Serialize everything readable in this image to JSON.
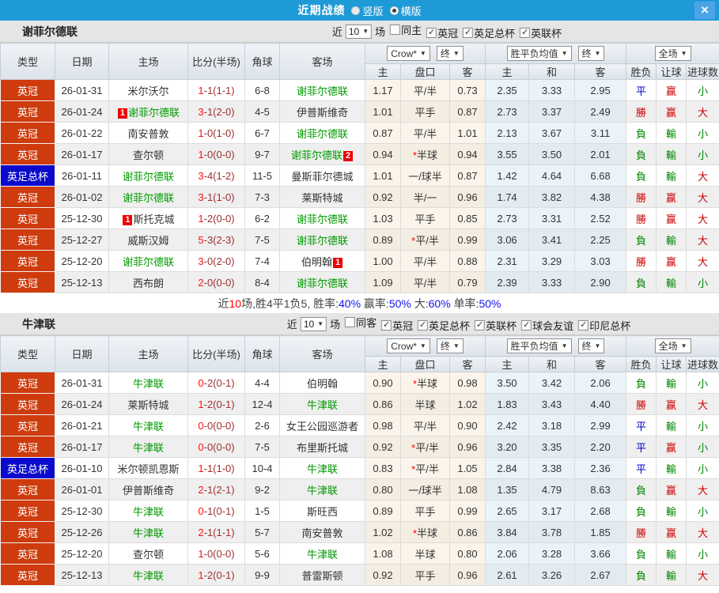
{
  "titlebar": {
    "title": "近期战绩",
    "radio_vertical": "竖版",
    "radio_horizontal": "横版",
    "close_glyph": "×"
  },
  "columns": {
    "type": "类型",
    "date": "日期",
    "home": "主场",
    "score": "比分(半场)",
    "corner": "角球",
    "away": "客场",
    "crow_dropdown": "Crow*",
    "final_dropdown": "终",
    "mean_dropdown": "胜平负均值",
    "final_dropdown2": "终",
    "full_dropdown": "全场",
    "sub_home": "主",
    "sub_pan": "盘口",
    "sub_away": "客",
    "sub_mhome": "主",
    "sub_draw": "和",
    "sub_maway": "客",
    "sub_result": "胜负",
    "sub_handicap": "让球",
    "sub_goals": "进球数"
  },
  "sections": [
    {
      "team": "谢菲尔德联",
      "filter": {
        "prefix": "近",
        "count": "10",
        "suffix": "场",
        "checkboxes": [
          {
            "label": "同主",
            "checked": false
          },
          {
            "label": "英冠",
            "checked": true
          },
          {
            "label": "英足总杯",
            "checked": true
          },
          {
            "label": "英联杯",
            "checked": true
          }
        ]
      },
      "rows": [
        {
          "type": "英冠",
          "type_cls": "league",
          "date": "26-01-31",
          "home": "米尔沃尔",
          "home_green": false,
          "home_badge": "",
          "score": "1-1(1-1)",
          "corner": "6-8",
          "away": "谢菲尔德联",
          "away_green": true,
          "away_badge": "",
          "o1": "1.17",
          "pan": "平/半",
          "o2": "0.73",
          "m1": "2.35",
          "m2": "3.33",
          "m3": "2.95",
          "res": {
            "t": "平",
            "c": "b"
          },
          "rq": {
            "t": "赢",
            "c": "r"
          },
          "gl": {
            "t": "小",
            "c": "g"
          }
        },
        {
          "type": "英冠",
          "type_cls": "league",
          "date": "26-01-24",
          "home": "谢菲尔德联",
          "home_green": true,
          "home_badge": "1",
          "score": "3-1(2-0)",
          "corner": "4-5",
          "away": "伊普斯维奇",
          "away_green": false,
          "away_badge": "",
          "o1": "1.01",
          "pan": "平手",
          "o2": "0.87",
          "m1": "2.73",
          "m2": "3.37",
          "m3": "2.49",
          "res": {
            "t": "勝",
            "c": "r"
          },
          "rq": {
            "t": "赢",
            "c": "r"
          },
          "gl": {
            "t": "大",
            "c": "r"
          }
        },
        {
          "type": "英冠",
          "type_cls": "league",
          "date": "26-01-22",
          "home": "南安普敦",
          "home_green": false,
          "home_badge": "",
          "score": "1-0(1-0)",
          "corner": "6-7",
          "away": "谢菲尔德联",
          "away_green": true,
          "away_badge": "",
          "o1": "0.87",
          "pan": "平/半",
          "o2": "1.01",
          "m1": "2.13",
          "m2": "3.67",
          "m3": "3.11",
          "res": {
            "t": "負",
            "c": "g"
          },
          "rq": {
            "t": "輸",
            "c": "g"
          },
          "gl": {
            "t": "小",
            "c": "g"
          }
        },
        {
          "type": "英冠",
          "type_cls": "league",
          "date": "26-01-17",
          "home": "查尔顿",
          "home_green": false,
          "home_badge": "",
          "score": "1-0(0-0)",
          "corner": "9-7",
          "away": "谢菲尔德联",
          "away_green": true,
          "away_badge": "2",
          "o1": "0.94",
          "pan": "*半球",
          "o2": "0.94",
          "m1": "3.55",
          "m2": "3.50",
          "m3": "2.01",
          "res": {
            "t": "負",
            "c": "g"
          },
          "rq": {
            "t": "輸",
            "c": "g"
          },
          "gl": {
            "t": "小",
            "c": "g"
          }
        },
        {
          "type": "英足总杯",
          "type_cls": "cup",
          "date": "26-01-11",
          "home": "谢菲尔德联",
          "home_green": true,
          "home_badge": "",
          "score": "3-4(1-2)",
          "corner": "11-5",
          "away": "曼斯菲尔德城",
          "away_green": false,
          "away_badge": "",
          "o1": "1.01",
          "pan": "一/球半",
          "o2": "0.87",
          "m1": "1.42",
          "m2": "4.64",
          "m3": "6.68",
          "res": {
            "t": "負",
            "c": "g"
          },
          "rq": {
            "t": "輸",
            "c": "g"
          },
          "gl": {
            "t": "大",
            "c": "r"
          }
        },
        {
          "type": "英冠",
          "type_cls": "league",
          "date": "26-01-02",
          "home": "谢菲尔德联",
          "home_green": true,
          "home_badge": "",
          "score": "3-1(1-0)",
          "corner": "7-3",
          "away": "莱斯特城",
          "away_green": false,
          "away_badge": "",
          "o1": "0.92",
          "pan": "半/一",
          "o2": "0.96",
          "m1": "1.74",
          "m2": "3.82",
          "m3": "4.38",
          "res": {
            "t": "勝",
            "c": "r"
          },
          "rq": {
            "t": "赢",
            "c": "r"
          },
          "gl": {
            "t": "大",
            "c": "r"
          }
        },
        {
          "type": "英冠",
          "type_cls": "league",
          "date": "25-12-30",
          "home": "斯托克城",
          "home_green": false,
          "home_badge": "1",
          "score": "1-2(0-0)",
          "corner": "6-2",
          "away": "谢菲尔德联",
          "away_green": true,
          "away_badge": "",
          "o1": "1.03",
          "pan": "平手",
          "o2": "0.85",
          "m1": "2.73",
          "m2": "3.31",
          "m3": "2.52",
          "res": {
            "t": "勝",
            "c": "r"
          },
          "rq": {
            "t": "赢",
            "c": "r"
          },
          "gl": {
            "t": "大",
            "c": "r"
          }
        },
        {
          "type": "英冠",
          "type_cls": "league",
          "date": "25-12-27",
          "home": "威斯汉姆",
          "home_green": false,
          "home_badge": "",
          "score": "5-3(2-3)",
          "corner": "7-5",
          "away": "谢菲尔德联",
          "away_green": true,
          "away_badge": "",
          "o1": "0.89",
          "pan": "*平/半",
          "o2": "0.99",
          "m1": "3.06",
          "m2": "3.41",
          "m3": "2.25",
          "res": {
            "t": "負",
            "c": "g"
          },
          "rq": {
            "t": "輸",
            "c": "g"
          },
          "gl": {
            "t": "大",
            "c": "r"
          }
        },
        {
          "type": "英冠",
          "type_cls": "league",
          "date": "25-12-20",
          "home": "谢菲尔德联",
          "home_green": true,
          "home_badge": "",
          "score": "3-0(2-0)",
          "corner": "7-4",
          "away": "伯明翰",
          "away_green": false,
          "away_badge": "1",
          "o1": "1.00",
          "pan": "平/半",
          "o2": "0.88",
          "m1": "2.31",
          "m2": "3.29",
          "m3": "3.03",
          "res": {
            "t": "勝",
            "c": "r"
          },
          "rq": {
            "t": "赢",
            "c": "r"
          },
          "gl": {
            "t": "大",
            "c": "r"
          }
        },
        {
          "type": "英冠",
          "type_cls": "league",
          "date": "25-12-13",
          "home": "西布朗",
          "home_green": false,
          "home_badge": "",
          "score": "2-0(0-0)",
          "corner": "8-4",
          "away": "谢菲尔德联",
          "away_green": true,
          "away_badge": "",
          "o1": "1.09",
          "pan": "平/半",
          "o2": "0.79",
          "m1": "2.39",
          "m2": "3.33",
          "m3": "2.90",
          "res": {
            "t": "負",
            "c": "g"
          },
          "rq": {
            "t": "輸",
            "c": "g"
          },
          "gl": {
            "t": "小",
            "c": "g"
          }
        }
      ],
      "summary": [
        {
          "t": "近",
          "c": "d"
        },
        {
          "t": "10",
          "c": "r"
        },
        {
          "t": "场,胜4平1负5, 胜率:",
          "c": "d"
        },
        {
          "t": "40%",
          "c": "b"
        },
        {
          "t": " 赢率:",
          "c": "d"
        },
        {
          "t": "50%",
          "c": "b"
        },
        {
          "t": " 大:",
          "c": "d"
        },
        {
          "t": "60%",
          "c": "b"
        },
        {
          "t": " 单率:",
          "c": "d"
        },
        {
          "t": "50%",
          "c": "b"
        }
      ]
    },
    {
      "team": "牛津联",
      "filter": {
        "prefix": "近",
        "count": "10",
        "suffix": "场",
        "checkboxes": [
          {
            "label": "同客",
            "checked": false
          },
          {
            "label": "英冠",
            "checked": true
          },
          {
            "label": "英足总杯",
            "checked": true
          },
          {
            "label": "英联杯",
            "checked": true
          },
          {
            "label": "球会友谊",
            "checked": true
          },
          {
            "label": "印尼总杯",
            "checked": true
          }
        ]
      },
      "rows": [
        {
          "type": "英冠",
          "type_cls": "league",
          "date": "26-01-31",
          "home": "牛津联",
          "home_green": true,
          "home_badge": "",
          "score": "0-2(0-1)",
          "corner": "4-4",
          "away": "伯明翰",
          "away_green": false,
          "away_badge": "",
          "o1": "0.90",
          "pan": "*半球",
          "o2": "0.98",
          "m1": "3.50",
          "m2": "3.42",
          "m3": "2.06",
          "res": {
            "t": "負",
            "c": "g"
          },
          "rq": {
            "t": "輸",
            "c": "g"
          },
          "gl": {
            "t": "小",
            "c": "g"
          }
        },
        {
          "type": "英冠",
          "type_cls": "league",
          "date": "26-01-24",
          "home": "莱斯特城",
          "home_green": false,
          "home_badge": "",
          "score": "1-2(0-1)",
          "corner": "12-4",
          "away": "牛津联",
          "away_green": true,
          "away_badge": "",
          "o1": "0.86",
          "pan": "半球",
          "o2": "1.02",
          "m1": "1.83",
          "m2": "3.43",
          "m3": "4.40",
          "res": {
            "t": "勝",
            "c": "r"
          },
          "rq": {
            "t": "赢",
            "c": "r"
          },
          "gl": {
            "t": "大",
            "c": "r"
          }
        },
        {
          "type": "英冠",
          "type_cls": "league",
          "date": "26-01-21",
          "home": "牛津联",
          "home_green": true,
          "home_badge": "",
          "score": "0-0(0-0)",
          "corner": "2-6",
          "away": "女王公园巡游者",
          "away_green": false,
          "away_badge": "",
          "o1": "0.98",
          "pan": "平/半",
          "o2": "0.90",
          "m1": "2.42",
          "m2": "3.18",
          "m3": "2.99",
          "res": {
            "t": "平",
            "c": "b"
          },
          "rq": {
            "t": "輸",
            "c": "g"
          },
          "gl": {
            "t": "小",
            "c": "g"
          }
        },
        {
          "type": "英冠",
          "type_cls": "league",
          "date": "26-01-17",
          "home": "牛津联",
          "home_green": true,
          "home_badge": "",
          "score": "0-0(0-0)",
          "corner": "7-5",
          "away": "布里斯托城",
          "away_green": false,
          "away_badge": "",
          "o1": "0.92",
          "pan": "*平/半",
          "o2": "0.96",
          "m1": "3.20",
          "m2": "3.35",
          "m3": "2.20",
          "res": {
            "t": "平",
            "c": "b"
          },
          "rq": {
            "t": "赢",
            "c": "r"
          },
          "gl": {
            "t": "小",
            "c": "g"
          }
        },
        {
          "type": "英足总杯",
          "type_cls": "cup",
          "date": "26-01-10",
          "home": "米尔顿凯恩斯",
          "home_green": false,
          "home_badge": "",
          "score": "1-1(1-0)",
          "corner": "10-4",
          "away": "牛津联",
          "away_green": true,
          "away_badge": "",
          "o1": "0.83",
          "pan": "*平/半",
          "o2": "1.05",
          "m1": "2.84",
          "m2": "3.38",
          "m3": "2.36",
          "res": {
            "t": "平",
            "c": "b"
          },
          "rq": {
            "t": "輸",
            "c": "g"
          },
          "gl": {
            "t": "小",
            "c": "g"
          }
        },
        {
          "type": "英冠",
          "type_cls": "league",
          "date": "26-01-01",
          "home": "伊普斯维奇",
          "home_green": false,
          "home_badge": "",
          "score": "2-1(2-1)",
          "corner": "9-2",
          "away": "牛津联",
          "away_green": true,
          "away_badge": "",
          "o1": "0.80",
          "pan": "一/球半",
          "o2": "1.08",
          "m1": "1.35",
          "m2": "4.79",
          "m3": "8.63",
          "res": {
            "t": "負",
            "c": "g"
          },
          "rq": {
            "t": "赢",
            "c": "r"
          },
          "gl": {
            "t": "大",
            "c": "r"
          }
        },
        {
          "type": "英冠",
          "type_cls": "league",
          "date": "25-12-30",
          "home": "牛津联",
          "home_green": true,
          "home_badge": "",
          "score": "0-1(0-1)",
          "corner": "1-5",
          "away": "斯旺西",
          "away_green": false,
          "away_badge": "",
          "o1": "0.89",
          "pan": "平手",
          "o2": "0.99",
          "m1": "2.65",
          "m2": "3.17",
          "m3": "2.68",
          "res": {
            "t": "負",
            "c": "g"
          },
          "rq": {
            "t": "輸",
            "c": "g"
          },
          "gl": {
            "t": "小",
            "c": "g"
          }
        },
        {
          "type": "英冠",
          "type_cls": "league",
          "date": "25-12-26",
          "home": "牛津联",
          "home_green": true,
          "home_badge": "",
          "score": "2-1(1-1)",
          "corner": "5-7",
          "away": "南安普敦",
          "away_green": false,
          "away_badge": "",
          "o1": "1.02",
          "pan": "*半球",
          "o2": "0.86",
          "m1": "3.84",
          "m2": "3.78",
          "m3": "1.85",
          "res": {
            "t": "勝",
            "c": "r"
          },
          "rq": {
            "t": "赢",
            "c": "r"
          },
          "gl": {
            "t": "大",
            "c": "r"
          }
        },
        {
          "type": "英冠",
          "type_cls": "league",
          "date": "25-12-20",
          "home": "查尔顿",
          "home_green": false,
          "home_badge": "",
          "score": "1-0(0-0)",
          "corner": "5-6",
          "away": "牛津联",
          "away_green": true,
          "away_badge": "",
          "o1": "1.08",
          "pan": "半球",
          "o2": "0.80",
          "m1": "2.06",
          "m2": "3.28",
          "m3": "3.66",
          "res": {
            "t": "負",
            "c": "g"
          },
          "rq": {
            "t": "輸",
            "c": "g"
          },
          "gl": {
            "t": "小",
            "c": "g"
          }
        },
        {
          "type": "英冠",
          "type_cls": "league",
          "date": "25-12-13",
          "home": "牛津联",
          "home_green": true,
          "home_badge": "",
          "score": "1-2(0-1)",
          "corner": "9-9",
          "away": "普雷斯顿",
          "away_green": false,
          "away_badge": "",
          "o1": "0.92",
          "pan": "平手",
          "o2": "0.96",
          "m1": "2.61",
          "m2": "3.26",
          "m3": "2.67",
          "res": {
            "t": "負",
            "c": "g"
          },
          "rq": {
            "t": "輸",
            "c": "g"
          },
          "gl": {
            "t": "大",
            "c": "r"
          }
        }
      ]
    }
  ]
}
